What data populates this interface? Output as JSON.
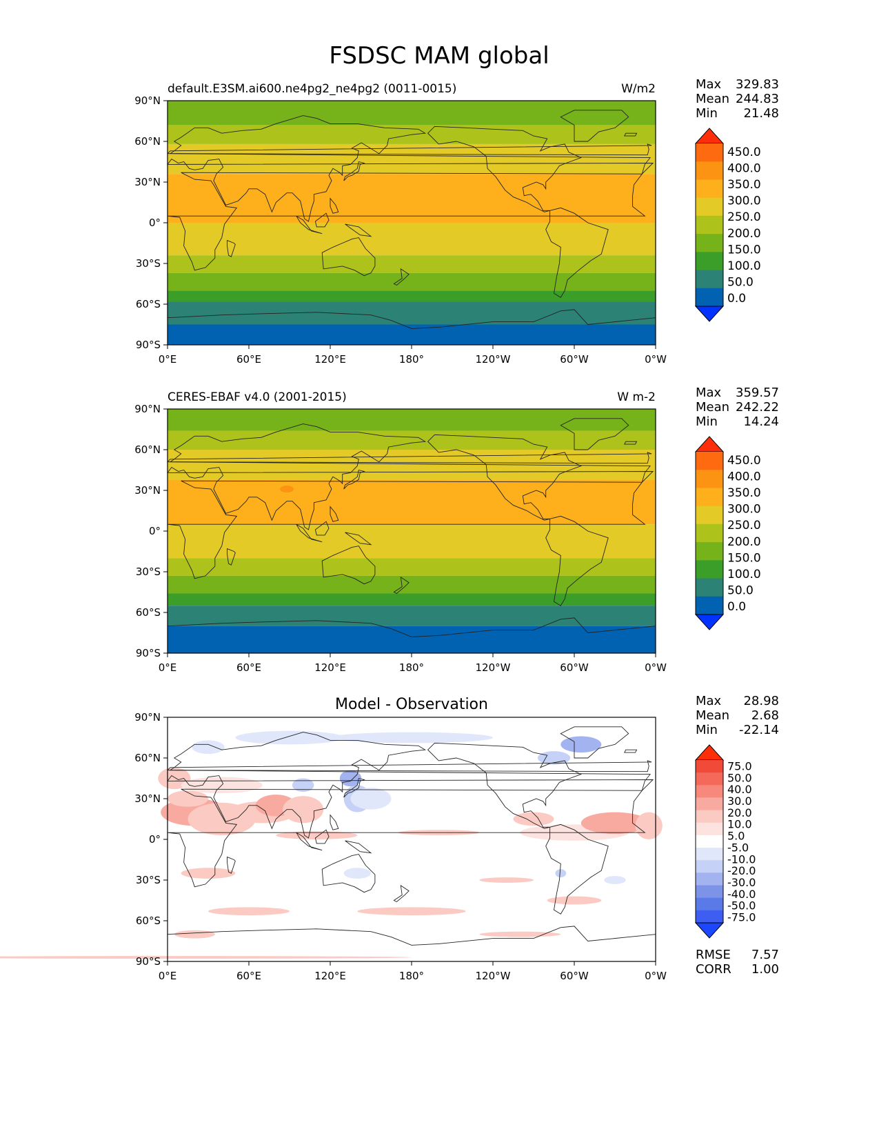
{
  "figure_title": "FSDSC MAM global",
  "axes": {
    "lat_labels": [
      "90°N",
      "60°N",
      "30°N",
      "0°",
      "30°S",
      "60°S",
      "90°S"
    ],
    "lon_labels": [
      "0°E",
      "60°E",
      "120°E",
      "180°",
      "120°W",
      "60°W",
      "0°W"
    ]
  },
  "colors": {
    "main_levels": [
      "#0033ff",
      "#0062b0",
      "#2d8276",
      "#3a9e29",
      "#76b21a",
      "#adc21b",
      "#e3ca27",
      "#fdb01c",
      "#fd9313",
      "#fe6a0f",
      "#ff2e0a"
    ],
    "diff_levels": [
      "#1a47ff",
      "#3d5ef0",
      "#5a7ae8",
      "#7d93e8",
      "#a2b3ef",
      "#c5d1f6",
      "#e1e7fb",
      "#ffffff",
      "#fde3df",
      "#fbcac3",
      "#f8a9a0",
      "#f6887c",
      "#f4695a",
      "#f24a38",
      "#ff2e0a"
    ],
    "land_outline": "#222222"
  },
  "panels": [
    {
      "id": "test",
      "title_left": "default.E3SM.ai600.ne4pg2_ne4pg2 (0011-0015)",
      "title_center": "",
      "units": "W/m2",
      "stats": {
        "max_label": "Max",
        "max": "329.83",
        "mean_label": "Mean",
        "mean": "244.83",
        "min_label": "Min",
        "min": "21.48"
      },
      "colorbar_ticks": [
        "450.0",
        "400.0",
        "350.0",
        "300.0",
        "250.0",
        "200.0",
        "150.0",
        "100.0",
        "50.0",
        "0.0"
      ]
    },
    {
      "id": "reference",
      "title_left": "CERES-EBAF v4.0 (2001-2015)",
      "title_center": "",
      "units": "W m-2",
      "stats": {
        "max_label": "Max",
        "max": "359.57",
        "mean_label": "Mean",
        "mean": "242.22",
        "min_label": "Min",
        "min": "14.24"
      },
      "colorbar_ticks": [
        "450.0",
        "400.0",
        "350.0",
        "300.0",
        "250.0",
        "200.0",
        "150.0",
        "100.0",
        "50.0",
        "0.0"
      ]
    },
    {
      "id": "difference",
      "title_left": "",
      "title_center": "Model - Observation",
      "units": "",
      "stats": {
        "max_label": "Max",
        "max": "28.98",
        "mean_label": "Mean",
        "mean": "2.68",
        "min_label": "Min",
        "min": "-22.14"
      },
      "colorbar_ticks": [
        "75.0",
        "50.0",
        "40.0",
        "30.0",
        "20.0",
        "10.0",
        "5.0",
        "-5.0",
        "-10.0",
        "-20.0",
        "-30.0",
        "-40.0",
        "-50.0",
        "-75.0"
      ],
      "rmse_label": "RMSE",
      "rmse": "7.57",
      "corr_label": "CORR",
      "corr": "1.00"
    }
  ]
}
